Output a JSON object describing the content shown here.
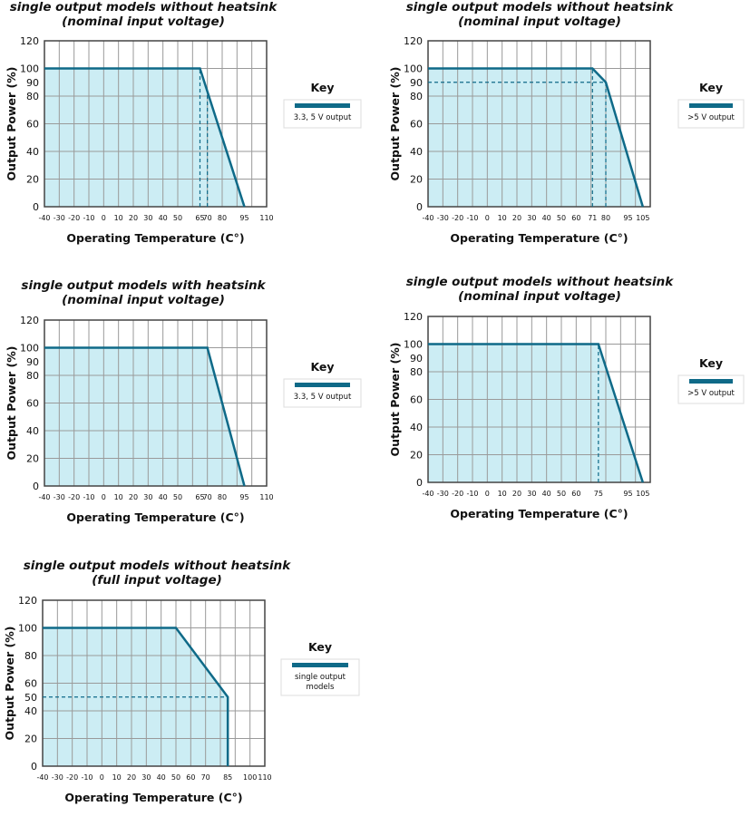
{
  "colors": {
    "line": "#0f6a88",
    "fill": "#ccedf4",
    "grid": "#9a9a9a",
    "frame": "#444444"
  },
  "chart_data": [
    {
      "type": "area",
      "title": [
        "single output models without heatsink",
        "(nominal input voltage)"
      ],
      "xlabel": "Operating Temperature (C°)",
      "ylabel": "Output Power (%)",
      "xlim": [
        -40,
        110
      ],
      "ylim": [
        0,
        120
      ],
      "grid": true,
      "xticks": [
        -40,
        -30,
        -20,
        -10,
        0,
        10,
        20,
        30,
        40,
        50,
        65,
        70,
        80,
        95,
        110
      ],
      "yticks": [
        0,
        20,
        40,
        60,
        80,
        90,
        100,
        120
      ],
      "series": [
        {
          "name": "3.3, 5 V output",
          "points": [
            [
              -40,
              100
            ],
            [
              65,
              100
            ],
            [
              95,
              0
            ]
          ]
        }
      ],
      "reference_lines": [
        {
          "x": 65,
          "y_to": 100
        },
        {
          "x": 70,
          "y_to": 83
        }
      ],
      "legend": {
        "title": "Key",
        "entries": [
          "3.3, 5 V output"
        ],
        "placement": "right"
      }
    },
    {
      "type": "area",
      "title": [
        "single output models without heatsink",
        "(nominal input voltage)"
      ],
      "xlabel": "Operating Temperature (C°)",
      "ylabel": "Output Power (%)",
      "xlim": [
        -40,
        110
      ],
      "ylim": [
        0,
        120
      ],
      "grid": true,
      "xticks": [
        -40,
        -30,
        -20,
        -10,
        0,
        10,
        20,
        30,
        40,
        50,
        60,
        71,
        80,
        95,
        105
      ],
      "yticks": [
        0,
        20,
        40,
        60,
        80,
        90,
        100,
        120
      ],
      "series": [
        {
          "name": ">5 V output",
          "points": [
            [
              -40,
              100
            ],
            [
              71,
              100
            ],
            [
              80,
              90
            ],
            [
              105,
              0
            ]
          ]
        }
      ],
      "reference_lines": [
        {
          "x": 71,
          "y_to": 100
        },
        {
          "x": 80,
          "y_to": 90
        },
        {
          "y": 90,
          "x_to": 80
        }
      ],
      "legend": {
        "title": "Key",
        "entries": [
          ">5 V output"
        ],
        "placement": "right"
      }
    },
    {
      "type": "area",
      "title": [
        "single output models with heatsink",
        "(nominal input voltage)"
      ],
      "xlabel": "Operating Temperature (C°)",
      "ylabel": "Output Power (%)",
      "xlim": [
        -40,
        110
      ],
      "ylim": [
        0,
        120
      ],
      "grid": true,
      "xticks": [
        -40,
        -30,
        -20,
        -10,
        0,
        10,
        20,
        30,
        40,
        50,
        65,
        70,
        80,
        95,
        110
      ],
      "yticks": [
        0,
        20,
        40,
        60,
        80,
        90,
        100,
        120
      ],
      "series": [
        {
          "name": "3.3, 5 V output",
          "points": [
            [
              -40,
              100
            ],
            [
              70,
              100
            ],
            [
              95,
              0
            ]
          ]
        }
      ],
      "reference_lines": [],
      "legend": {
        "title": "Key",
        "entries": [
          "3.3, 5 V output"
        ],
        "placement": "right"
      }
    },
    {
      "type": "area",
      "title": [
        "single output models without heatsink",
        "(nominal input voltage)"
      ],
      "xlabel": "Operating Temperature (C°)",
      "ylabel": "Output Power (%)",
      "xlim": [
        -40,
        110
      ],
      "ylim": [
        0,
        120
      ],
      "grid": true,
      "xticks": [
        -40,
        -30,
        -20,
        -10,
        0,
        10,
        20,
        30,
        40,
        50,
        60,
        75,
        95,
        105
      ],
      "yticks": [
        0,
        20,
        40,
        60,
        80,
        90,
        100,
        120
      ],
      "series": [
        {
          "name": ">5 V output",
          "points": [
            [
              -40,
              100
            ],
            [
              75,
              100
            ],
            [
              105,
              0
            ]
          ]
        }
      ],
      "reference_lines": [
        {
          "x": 75,
          "y_to": 100
        }
      ],
      "legend": {
        "title": "Key",
        "entries": [
          ">5 V output"
        ],
        "placement": "right"
      }
    },
    {
      "type": "area",
      "title": [
        "single output models without heatsink",
        "(full input voltage)"
      ],
      "xlabel": "Operating Temperature (C°)",
      "ylabel": "Output Power (%)",
      "xlim": [
        -40,
        110
      ],
      "ylim": [
        0,
        120
      ],
      "grid": true,
      "xticks": [
        -40,
        -30,
        -20,
        -10,
        0,
        10,
        20,
        30,
        40,
        50,
        60,
        70,
        85,
        100,
        110
      ],
      "yticks": [
        0,
        20,
        40,
        50,
        60,
        80,
        100,
        120
      ],
      "series": [
        {
          "name": "single output models",
          "points": [
            [
              -40,
              100
            ],
            [
              50,
              100
            ],
            [
              85,
              50
            ],
            [
              85,
              0
            ]
          ]
        }
      ],
      "reference_lines": [
        {
          "y": 50,
          "x_to": 85
        }
      ],
      "legend": {
        "title": "Key",
        "entries": [
          "single output",
          "models"
        ],
        "placement": "right"
      }
    }
  ]
}
